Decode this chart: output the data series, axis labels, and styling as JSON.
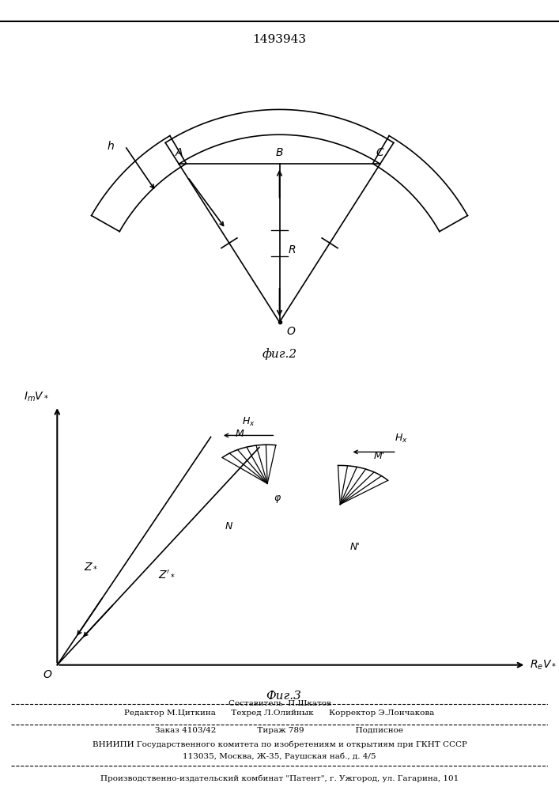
{
  "title": "1493943",
  "fig2_caption": "фиг.2",
  "fig3_caption": "Фиг.3",
  "bg_color": "#ffffff",
  "line_color": "#000000",
  "footer_lines": [
    "Составитель  П.Шкатов",
    "Редактор М.Циткина      Техред Л.Олийнык      Корректор Э.Лончакова",
    "Заказ 4103/42                Тираж 789                    Подписное",
    "ВНИИПИ Государственного комитета по изобретениям и открытиям при ГКНТ СССР",
    "113035, Москва, Ж-35, Раушская наб., д. 4/5",
    "Производственно-издательский комбинат \"Патент\", г. Ужгород, ул. Гагарина, 101"
  ]
}
